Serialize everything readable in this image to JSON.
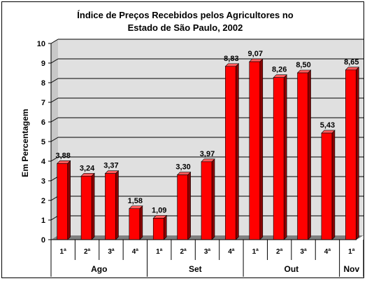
{
  "chart_data": {
    "type": "bar",
    "title_line1": "Índice de Preços Recebidos pelos Agricultores no",
    "title_line2": "Estado de São Paulo, 2002",
    "ylabel": "Em Percentagem",
    "ylim": [
      0,
      10
    ],
    "yticks": [
      "0",
      "1",
      "2",
      "3",
      "4",
      "5",
      "6",
      "7",
      "8",
      "9",
      "10"
    ],
    "grid": true,
    "bar_color": "#ff0000",
    "categories": [
      "1ª",
      "2ª",
      "3ª",
      "4ª",
      "1ª",
      "2ª",
      "3ª",
      "4ª",
      "1ª",
      "2ª",
      "3ª",
      "4ª",
      "1ª"
    ],
    "values": [
      3.88,
      3.24,
      3.37,
      1.58,
      1.09,
      3.3,
      3.97,
      8.83,
      9.07,
      8.26,
      8.5,
      5.43,
      8.65
    ],
    "value_labels": [
      "3,88",
      "3,24",
      "3,37",
      "1,58",
      "1,09",
      "3,30",
      "3,97",
      "8,83",
      "9,07",
      "8,26",
      "8,50",
      "5,43",
      "8,65"
    ],
    "groups": [
      {
        "label": "Ago",
        "count": 4
      },
      {
        "label": "Set",
        "count": 4
      },
      {
        "label": "Out",
        "count": 4
      },
      {
        "label": "Nov",
        "count": 1
      }
    ]
  }
}
